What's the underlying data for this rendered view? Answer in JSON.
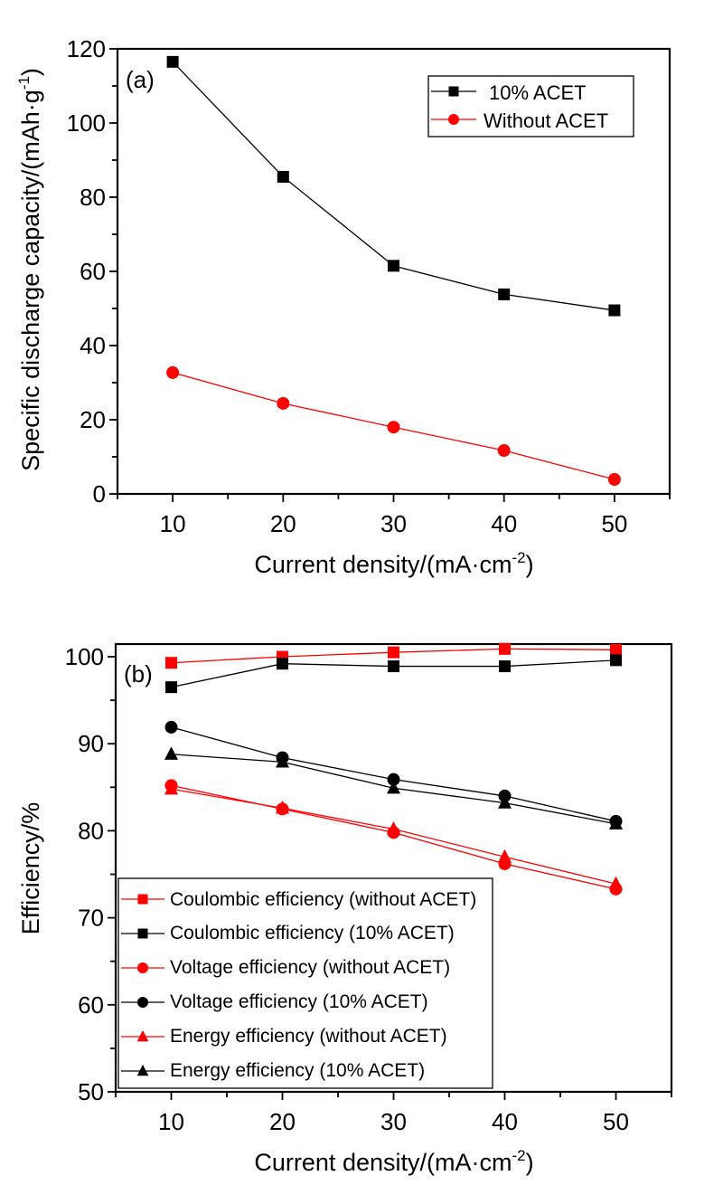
{
  "chart_data": [
    {
      "type": "line",
      "panel_label": "(a)",
      "xlabel": "Current density/(mA·cm",
      "xlabel_sup": "-2",
      "xlabel_end": ")",
      "ylabel": "Specific discharge capacity/(mAh·g",
      "ylabel_sup": "-1",
      "ylabel_end": ")",
      "x": [
        10,
        20,
        30,
        40,
        50
      ],
      "xlim": [
        5,
        55
      ],
      "ylim": [
        0,
        120
      ],
      "xticks": [
        "10",
        "20",
        "30",
        "40",
        "50"
      ],
      "yticks": [
        "0",
        "20",
        "40",
        "60",
        "80",
        "100",
        "120"
      ],
      "grid": false,
      "legend_position": "top-right",
      "series": [
        {
          "name": "10% ACET",
          "color": "#000000",
          "marker": "square",
          "values": [
            116.5,
            85.5,
            61.5,
            53.8,
            49.5
          ]
        },
        {
          "name": "Without ACET",
          "color": "#ff0000",
          "marker": "circle",
          "values": [
            32.7,
            24.4,
            18.0,
            11.7,
            3.9
          ]
        }
      ]
    },
    {
      "type": "line",
      "panel_label": "(b)",
      "xlabel": "Current density/(mA·cm",
      "xlabel_sup": "-2",
      "xlabel_end": ")",
      "ylabel": "Efficiency/%",
      "x": [
        10,
        20,
        30,
        40,
        50
      ],
      "xlim": [
        5,
        55
      ],
      "ylim": [
        50,
        101.5
      ],
      "xticks": [
        "10",
        "20",
        "30",
        "40",
        "50"
      ],
      "yticks": [
        "50",
        "60",
        "70",
        "80",
        "90",
        "100"
      ],
      "grid": false,
      "legend_position": "bottom-left",
      "series": [
        {
          "name": "Coulombic efficiency (without ACET)",
          "color": "#ff0000",
          "marker": "square",
          "values": [
            99.3,
            100.0,
            100.5,
            100.9,
            100.8
          ]
        },
        {
          "name": "Coulombic efficiency (10% ACET)",
          "color": "#000000",
          "marker": "square",
          "values": [
            96.5,
            99.2,
            98.9,
            98.9,
            99.6
          ]
        },
        {
          "name": "Voltage efficiency (without ACET)",
          "color": "#ff0000",
          "marker": "circle",
          "values": [
            85.2,
            82.5,
            79.8,
            76.2,
            73.3
          ]
        },
        {
          "name": "Voltage efficiency (10% ACET)",
          "color": "#000000",
          "marker": "circle",
          "values": [
            91.9,
            88.4,
            85.9,
            84.0,
            81.1
          ]
        },
        {
          "name": "Energy efficiency (without ACET)",
          "color": "#ff0000",
          "marker": "triangle",
          "values": [
            84.8,
            82.6,
            80.2,
            77.0,
            73.9
          ]
        },
        {
          "name": "Energy efficiency (10% ACET)",
          "color": "#000000",
          "marker": "triangle",
          "values": [
            88.8,
            87.9,
            84.9,
            83.2,
            80.8
          ]
        }
      ]
    }
  ]
}
